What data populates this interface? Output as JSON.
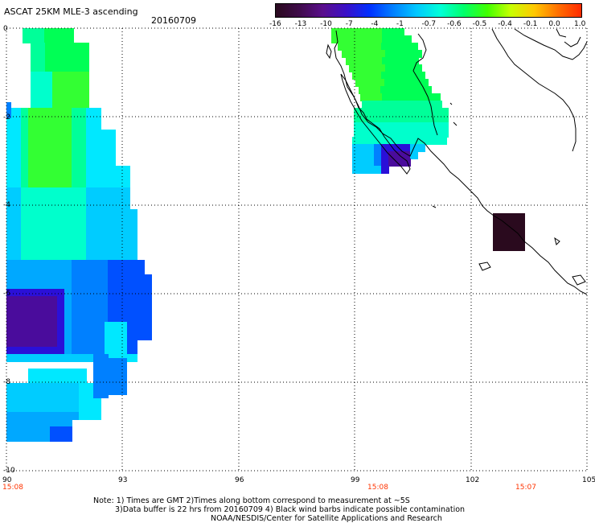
{
  "header": {
    "title": "ASCAT 25KM MLE-3 ascending",
    "date": "20160709"
  },
  "colorbar": {
    "labels": [
      "-16",
      "-13",
      "-10",
      "-7",
      "-4",
      "-1",
      "-0.7",
      "-0.6",
      "-0.5",
      "-0.4",
      "-0.1",
      "0.0",
      "1.0"
    ],
    "colors": [
      "#2a0a1e",
      "#3f0b4a",
      "#5a0e8c",
      "#3a10c8",
      "#0030ff",
      "#0080ff",
      "#00c8ff",
      "#00ffd8",
      "#00ff6a",
      "#40ff00",
      "#c8ff00",
      "#ffc800",
      "#ff7000",
      "#ff2a00"
    ]
  },
  "axes": {
    "y_labels": [
      "0",
      "-2",
      "-4",
      "-6",
      "-8",
      "-10"
    ],
    "x_labels": [
      "90",
      "93",
      "96",
      "99",
      "102",
      "105"
    ],
    "time_labels": [
      "15:08",
      "15:08",
      "15:07"
    ]
  },
  "notes": {
    "line1": "Note: 1) Times are GMT 2)Times along bottom correspond to measurement at ~5S",
    "line2": "3)Data buffer is 22 hrs from 20160709 4) Black wind barbs indicate possible contamination",
    "line3": "NOAA/NESDIS/Center for Satellite Applications and Research"
  }
}
